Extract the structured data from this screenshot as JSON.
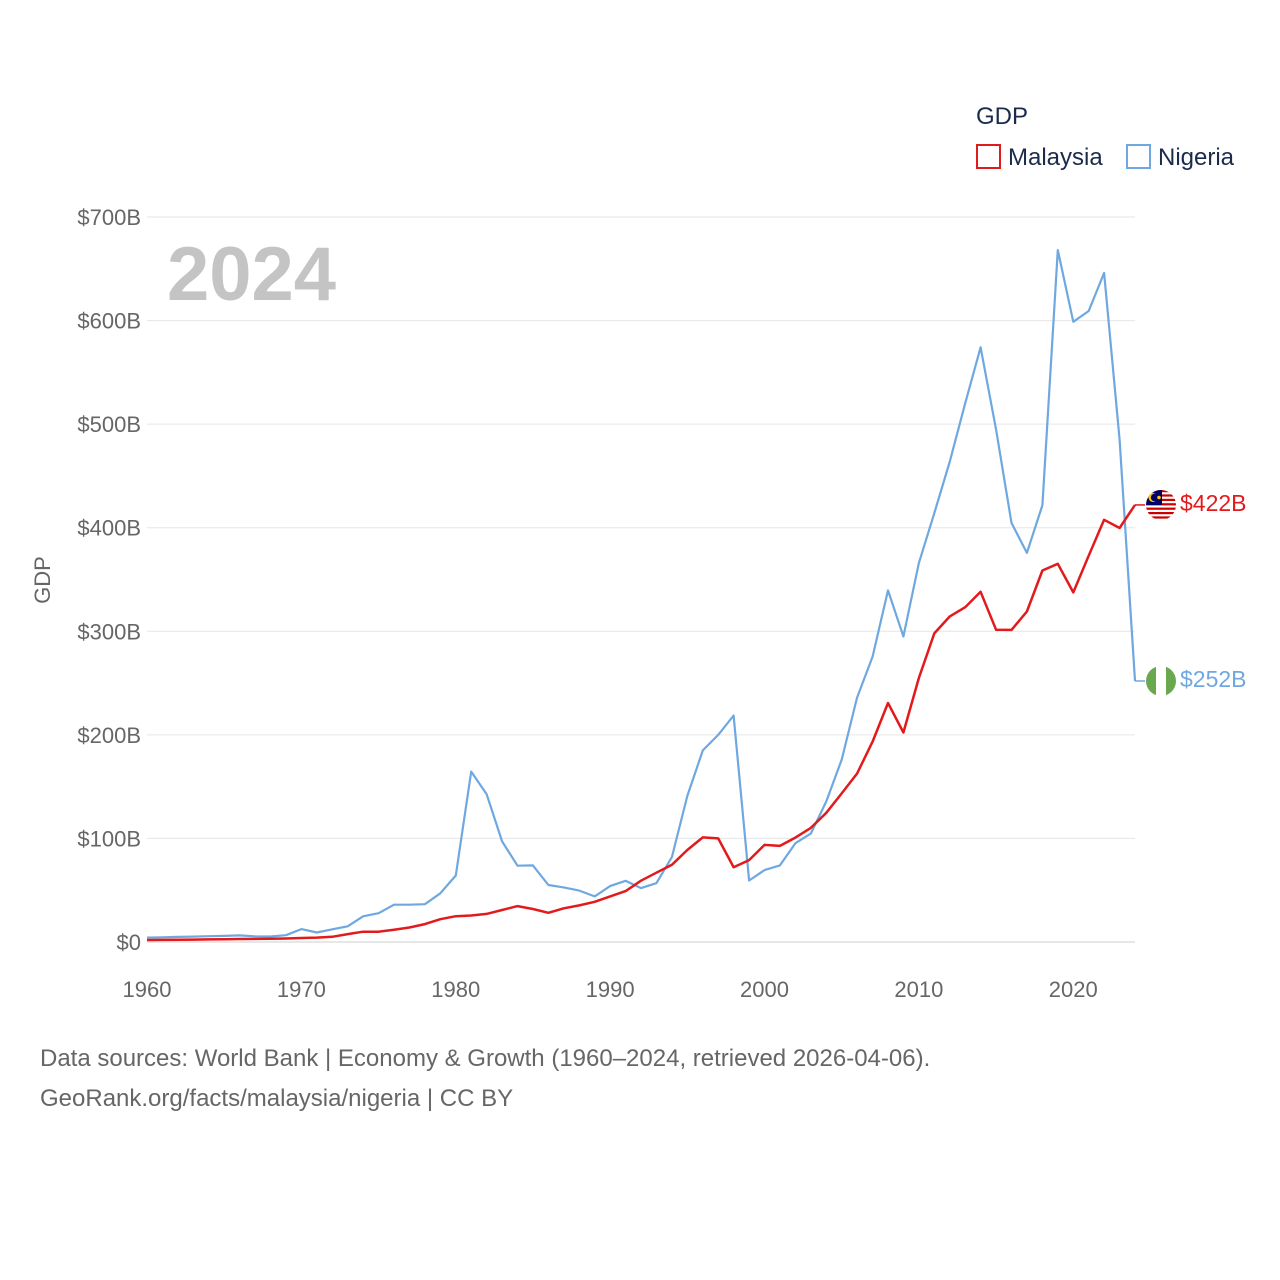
{
  "chart_data": {
    "type": "line",
    "title": "",
    "xlabel": "",
    "ylabel": "GDP",
    "year_label": "2024",
    "legend": {
      "title": "GDP",
      "position": "top-right"
    },
    "xlim": [
      1960,
      2024
    ],
    "ylim": [
      0,
      700
    ],
    "x_ticks": [
      1960,
      1970,
      1980,
      1990,
      2000,
      2010,
      2020
    ],
    "x_tick_labels": [
      "1960",
      "1970",
      "1980",
      "1990",
      "2000",
      "2010",
      "2020"
    ],
    "y_ticks": [
      0,
      100,
      200,
      300,
      400,
      500,
      600,
      700
    ],
    "y_tick_labels": [
      "$0",
      "$100B",
      "$200B",
      "$300B",
      "$400B",
      "$500B",
      "$600B",
      "$700B"
    ],
    "grid": true,
    "x": [
      1960,
      1961,
      1962,
      1963,
      1964,
      1965,
      1966,
      1967,
      1968,
      1969,
      1970,
      1971,
      1972,
      1973,
      1974,
      1975,
      1976,
      1977,
      1978,
      1979,
      1980,
      1981,
      1982,
      1983,
      1984,
      1985,
      1986,
      1987,
      1988,
      1989,
      1990,
      1991,
      1992,
      1993,
      1994,
      1995,
      1996,
      1997,
      1998,
      1999,
      2000,
      2001,
      2002,
      2003,
      2004,
      2005,
      2006,
      2007,
      2008,
      2009,
      2010,
      2011,
      2012,
      2013,
      2014,
      2015,
      2016,
      2017,
      2018,
      2019,
      2020,
      2021,
      2022,
      2023,
      2024
    ],
    "series": [
      {
        "name": "Malaysia",
        "color": "#e31a1c",
        "end_label": "$422B",
        "values": [
          1.9,
          2.0,
          2.1,
          2.3,
          2.5,
          2.7,
          2.9,
          3.0,
          3.1,
          3.4,
          3.9,
          4.2,
          5.0,
          7.6,
          9.9,
          9.9,
          11.9,
          14.0,
          17.3,
          22.0,
          24.9,
          25.6,
          27.1,
          30.9,
          34.7,
          31.9,
          28.2,
          32.5,
          35.3,
          38.8,
          44.0,
          49.1,
          59.2,
          66.9,
          74.5,
          88.8,
          101.0,
          100.0,
          72.2,
          79.1,
          93.8,
          92.8,
          100.8,
          110.2,
          124.7,
          143.5,
          162.7,
          193.5,
          230.8,
          202.3,
          255.0,
          298.0,
          314.4,
          323.3,
          338.1,
          301.4,
          301.3,
          319.1,
          358.7,
          365.2,
          337.5,
          373.0,
          407.6,
          399.7,
          422.0
        ]
      },
      {
        "name": "Nigeria",
        "color": "#6fa8e0",
        "end_label": "$252B",
        "values": [
          4.2,
          4.5,
          4.9,
          5.2,
          5.6,
          5.9,
          6.4,
          5.5,
          5.3,
          6.6,
          12.5,
          9.2,
          12.3,
          15.2,
          24.8,
          27.8,
          36.0,
          36.0,
          36.5,
          47.0,
          64.2,
          164.5,
          142.8,
          97.1,
          73.7,
          74.0,
          55.0,
          52.7,
          49.6,
          44.0,
          54.0,
          59.1,
          52.0,
          56.8,
          82.0,
          141.0,
          185.0,
          200.0,
          218.7,
          59.4,
          69.4,
          74.0,
          95.4,
          104.7,
          135.8,
          176.1,
          236.1,
          275.6,
          339.5,
          295.0,
          366.0,
          414.0,
          463.9,
          520.1,
          574.2,
          494.6,
          404.6,
          375.7,
          421.7,
          668.0,
          598.8,
          609.2,
          646.0,
          485.0,
          252.0
        ]
      }
    ]
  },
  "footer": {
    "line1": "Data sources: World Bank | Economy & Growth (1960–2024, retrieved 2026-04-06).",
    "line2": "GeoRank.org/facts/malaysia/nigeria | CC BY"
  }
}
